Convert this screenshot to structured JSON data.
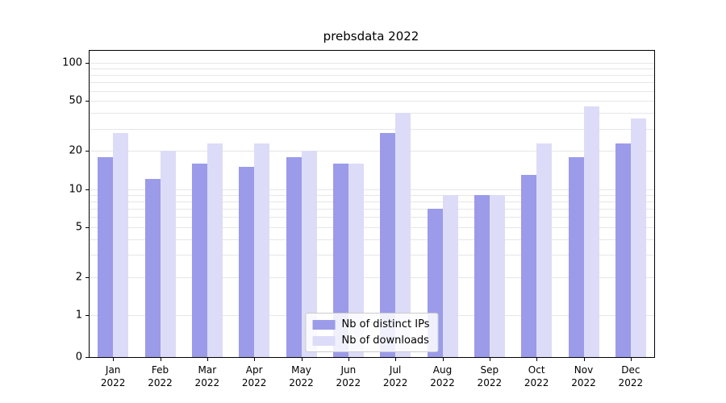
{
  "chart_data": {
    "type": "bar",
    "title": "prebsdata 2022",
    "year_label": "2022",
    "categories": [
      "Jan",
      "Feb",
      "Mar",
      "Apr",
      "May",
      "Jun",
      "Jul",
      "Aug",
      "Sep",
      "Oct",
      "Nov",
      "Dec"
    ],
    "series": [
      {
        "name": "Nb of distinct IPs",
        "color": "#9b9bea",
        "values": [
          18,
          12,
          16,
          15,
          18,
          16,
          28,
          7,
          9,
          13,
          18,
          23
        ]
      },
      {
        "name": "Nb of downloads",
        "color": "#dcdcf8",
        "values": [
          28,
          20,
          23,
          23,
          20,
          16,
          40,
          9,
          9,
          23,
          45,
          36
        ]
      }
    ],
    "yscale": "symlog",
    "yticks": [
      0,
      1,
      2,
      5,
      10,
      20,
      50,
      100
    ],
    "ylim": [
      0,
      130
    ],
    "grid": "horizontal-minor",
    "legend_position": "lower center",
    "axis_color": "#000000",
    "gridline_color": "#e6e6e6"
  }
}
